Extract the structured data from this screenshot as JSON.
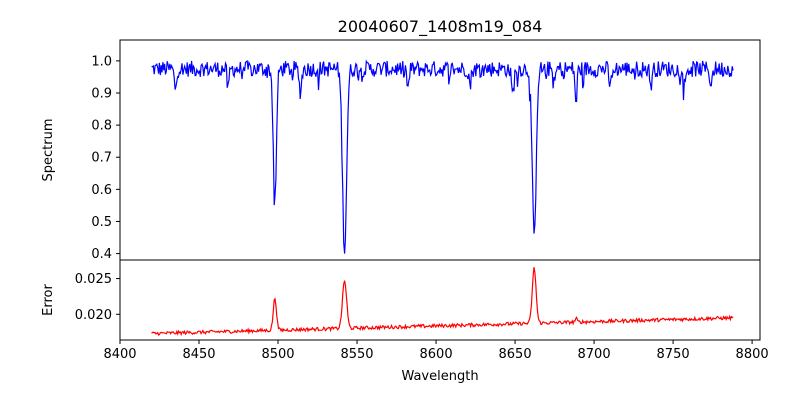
{
  "chart_data": {
    "type": "line",
    "title": "20040607_1408m19_084",
    "xlabel": "Wavelength",
    "xlim": [
      8400,
      8805
    ],
    "xticks": [
      8400,
      8450,
      8500,
      8550,
      8600,
      8650,
      8700,
      8750,
      8800
    ],
    "grid": false,
    "panels": [
      {
        "name": "spectrum-panel",
        "ylabel": "Spectrum",
        "ylim": [
          0.38,
          1.065
        ],
        "yticks": [
          0.4,
          0.5,
          0.6,
          0.7,
          0.8,
          0.9,
          1.0
        ],
        "ytick_labels": [
          "0.4",
          "0.5",
          "0.6",
          "0.7",
          "0.8",
          "0.9",
          "1.0"
        ],
        "color": "#0000ff",
        "baseline": 0.975,
        "noise_amplitude": 0.025,
        "absorption_lines": [
          {
            "x": 8498.0,
            "depth": 0.41,
            "width": 1.0
          },
          {
            "x": 8542.1,
            "depth": 0.565,
            "width": 1.3
          },
          {
            "x": 8662.1,
            "depth": 0.535,
            "width": 1.2
          },
          {
            "x": 8688.6,
            "depth": 0.11,
            "width": 0.6
          },
          {
            "x": 8514.1,
            "depth": 0.07,
            "width": 0.8
          },
          {
            "x": 8468.4,
            "depth": 0.07,
            "width": 0.6
          },
          {
            "x": 8435.0,
            "depth": 0.06,
            "width": 0.7
          },
          {
            "x": 8582.3,
            "depth": 0.06,
            "width": 0.7
          },
          {
            "x": 8648.5,
            "depth": 0.08,
            "width": 0.8
          },
          {
            "x": 8621.6,
            "depth": 0.05,
            "width": 0.7
          },
          {
            "x": 8674.8,
            "depth": 0.05,
            "width": 0.7
          },
          {
            "x": 8710.2,
            "depth": 0.06,
            "width": 0.7
          },
          {
            "x": 8736.0,
            "depth": 0.05,
            "width": 0.7
          },
          {
            "x": 8757.2,
            "depth": 0.05,
            "width": 0.7
          },
          {
            "x": 8774.0,
            "depth": 0.05,
            "width": 0.7
          }
        ],
        "x_range": [
          8420,
          8788
        ]
      },
      {
        "name": "error-panel",
        "ylabel": "Error",
        "ylim": [
          0.0164,
          0.0276
        ],
        "yticks": [
          0.02,
          0.025
        ],
        "ytick_labels": [
          "0.020",
          "0.025"
        ],
        "color": "#ff0000",
        "baseline_start": 0.0173,
        "baseline_end": 0.0195,
        "noise_amplitude": 0.0004,
        "emission_peaks": [
          {
            "x": 8498.0,
            "height": 0.0045,
            "width": 1.0
          },
          {
            "x": 8542.1,
            "height": 0.0067,
            "width": 1.3
          },
          {
            "x": 8662.1,
            "height": 0.0077,
            "width": 1.2
          },
          {
            "x": 8688.6,
            "height": 0.0005,
            "width": 0.6
          }
        ],
        "x_range": [
          8420,
          8788
        ]
      }
    ]
  }
}
